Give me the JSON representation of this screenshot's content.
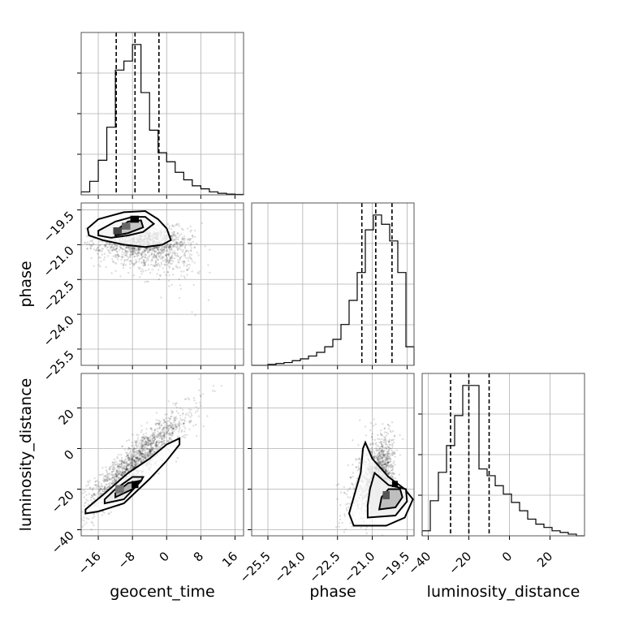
{
  "chart_data": {
    "type": "corner",
    "parameters": [
      "geocent_time",
      "phase",
      "luminosity_distance"
    ],
    "grid": true,
    "quantile_lines": "dashed",
    "ranges": {
      "geocent_time": [
        -20,
        18
      ],
      "phase": [
        -26.2,
        -19.2
      ],
      "luminosity_distance": [
        -43,
        37
      ]
    },
    "ticks": {
      "geocent_time": [
        "-16",
        "-8",
        "0",
        "8",
        "16"
      ],
      "phase": [
        "-25.5",
        "-24.0",
        "-22.5",
        "-21.0",
        "-19.5"
      ],
      "luminosity_distance": [
        "-40",
        "-20",
        "0",
        "20"
      ]
    },
    "tick_values": {
      "geocent_time": [
        -16,
        -8,
        0,
        8,
        16
      ],
      "phase": [
        -25.5,
        -24.0,
        -22.5,
        -21.0,
        -19.5
      ],
      "luminosity_distance": [
        -40,
        -20,
        0,
        20
      ]
    },
    "histograms": {
      "geocent_time": {
        "bin_edges": [
          -20,
          -18,
          -16,
          -14,
          -12,
          -10,
          -8,
          -6,
          -4,
          -2,
          0,
          2,
          4,
          6,
          8,
          10,
          12,
          14,
          16,
          18
        ],
        "counts": [
          2,
          9,
          23,
          45,
          83,
          89,
          100,
          68,
          43,
          28,
          22,
          15,
          10,
          6,
          4,
          2,
          1,
          0.5,
          0.3
        ],
        "quantiles": [
          -11.8,
          -7.4,
          -1.8
        ]
      },
      "phase": {
        "bin_edges": [
          -26.2,
          -25.85,
          -25.5,
          -25.15,
          -24.8,
          -24.45,
          -24.1,
          -23.75,
          -23.4,
          -23.05,
          -22.7,
          -22.35,
          -22.0,
          -21.65,
          -21.3,
          -20.95,
          -20.6,
          -20.25,
          -19.9,
          -19.55,
          -19.2
        ],
        "counts": [
          0,
          0,
          0.5,
          1,
          1.5,
          2.5,
          3.5,
          5,
          7,
          10,
          14,
          22,
          35,
          50,
          73,
          81,
          76,
          67,
          50,
          10
        ],
        "quantiles": [
          -21.45,
          -20.85,
          -20.15
        ]
      },
      "luminosity_distance": {
        "bin_edges": [
          -43,
          -39,
          -35,
          -31,
          -27,
          -23,
          -19,
          -15,
          -11,
          -7,
          -3,
          1,
          5,
          9,
          13,
          17,
          21,
          25,
          29,
          33,
          37
        ],
        "counts": [
          3,
          21,
          38,
          54,
          72,
          90,
          90,
          40,
          36,
          30,
          25,
          20,
          15,
          10,
          7,
          5,
          3,
          2,
          1,
          0
        ],
        "quantiles": [
          -29,
          -20,
          -10
        ]
      }
    }
  }
}
